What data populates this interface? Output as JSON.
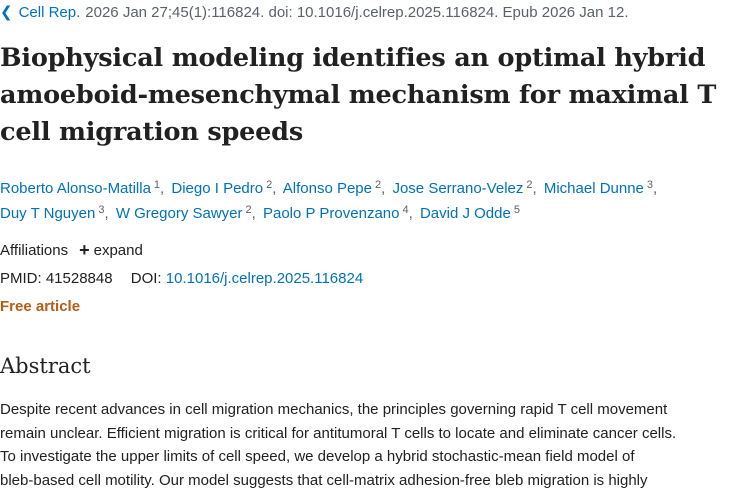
{
  "citation": {
    "journal": "Cell Rep.",
    "details": "2026 Jan 27;45(1):116824. doi: 10.1016/j.celrep.2025.116824. Epub 2026 Jan 12."
  },
  "title": {
    "line1": "Biophysical modeling identifies an optimal hybrid",
    "line2": "amoeboid-mesenchymal mechanism for maximal T",
    "line3": "cell migration speeds"
  },
  "authors": [
    {
      "name": "Roberto Alonso-Matilla",
      "aff": "1"
    },
    {
      "name": "Diego I Pedro",
      "aff": "2"
    },
    {
      "name": "Alfonso Pepe",
      "aff": "2"
    },
    {
      "name": "Jose Serrano-Velez",
      "aff": "2"
    },
    {
      "name": "Michael Dunne",
      "aff": "3"
    },
    {
      "name": "Duy T Nguyen",
      "aff": "3"
    },
    {
      "name": "W Gregory Sawyer",
      "aff": "2"
    },
    {
      "name": "Paolo P Provenzano",
      "aff": "4"
    },
    {
      "name": "David J Odde",
      "aff": "5"
    }
  ],
  "affiliations": {
    "label": "Affiliations",
    "expand_label": "expand"
  },
  "ids": {
    "pmid_label": "PMID:",
    "pmid": "41528848",
    "doi_label": "DOI:",
    "doi": "10.1016/j.celrep.2025.116824"
  },
  "free_article": "Free article",
  "abstract": {
    "heading": "Abstract",
    "lines": [
      "Despite recent advances in cell migration mechanics, the principles governing rapid T cell movement",
      "remain unclear. Efficient migration is critical for antitumoral T cells to locate and eliminate cancer cells.",
      "To investigate the upper limits of cell speed, we develop a hybrid stochastic-mean field model of",
      "bleb-based cell motility. Our model suggests that cell-matrix adhesion-free bleb migration is highly"
    ]
  },
  "icons": {
    "back": "chevron-left-icon",
    "expand": "plus-icon"
  },
  "colors": {
    "link": "#0071bc",
    "free_article": "#b75b15",
    "muted": "#5b616b",
    "text": "#212121"
  }
}
